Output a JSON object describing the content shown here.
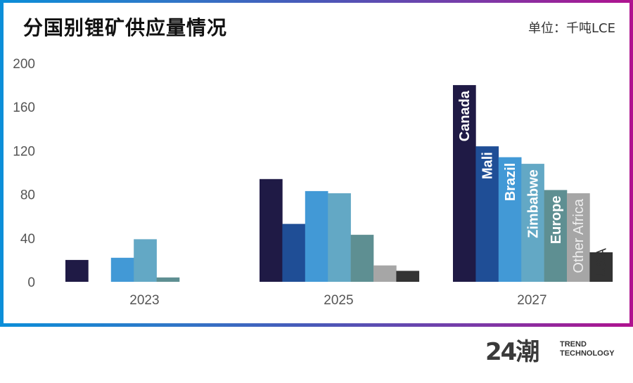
{
  "header": {
    "title": "分国别锂矿供应量情况",
    "unit": "单位：千吨LCE"
  },
  "logo": {
    "mark": "24潮",
    "line1": "TREND",
    "line2": "TECHNOLOGY"
  },
  "colors": {
    "frame_left": "#0b8ed8",
    "frame_right": "#b0128f",
    "axis_text": "#555555"
  },
  "chart_data": {
    "type": "bar",
    "title": "分国别锂矿供应量情况",
    "unit": "单位：千吨LCE",
    "xlabel": "",
    "ylabel": "",
    "ylim": [
      0,
      200
    ],
    "yticks": [
      0,
      40,
      80,
      120,
      160,
      200
    ],
    "grid": false,
    "legend": "inline-rotated-labels-on-2027-bars",
    "categories": [
      "2023",
      "2025",
      "2027"
    ],
    "series": [
      {
        "name": "Canada",
        "color": "#1f1a45",
        "values": [
          20,
          94,
          180
        ],
        "label_color": "#ffffff"
      },
      {
        "name": "Mali",
        "color": "#1f4e96",
        "values": [
          0,
          53,
          124
        ],
        "label_color": "#ffffff"
      },
      {
        "name": "Brazil",
        "color": "#4299d6",
        "values": [
          22,
          83,
          114
        ],
        "label_color": "#ffffff"
      },
      {
        "name": "Zimbabwe",
        "color": "#63a8c5",
        "values": [
          39,
          81,
          108
        ],
        "label_color": "#ffffff"
      },
      {
        "name": "Europe",
        "color": "#5e8f92",
        "values": [
          4,
          43,
          84
        ],
        "label_color": "#ffffff"
      },
      {
        "name": "Other Africa",
        "color": "#a6a6a6",
        "values": [
          0,
          15,
          81
        ],
        "label_color": "#eeeeee"
      },
      {
        "name": "USA",
        "color": "#333333",
        "values": [
          0,
          10,
          27
        ],
        "label_color": "#333333"
      }
    ]
  }
}
